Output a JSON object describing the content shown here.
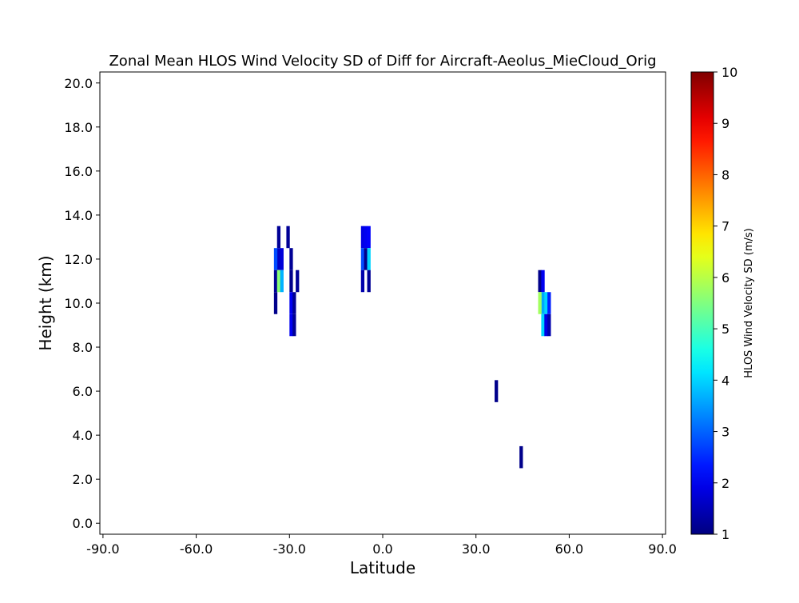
{
  "chart_data": {
    "type": "heatmap",
    "title": "Zonal Mean HLOS Wind Velocity SD of Diff for Aircraft-Aeolus_MieCloud_Orig",
    "xlabel": "Latitude",
    "ylabel": "Height (km)",
    "xlim": [
      -91,
      91
    ],
    "ylim": [
      -0.5,
      20.5
    ],
    "xticks": [
      -90,
      -60,
      -30,
      0,
      30,
      60,
      90
    ],
    "xtick_labels": [
      "-90.0",
      "-60.0",
      "-30.0",
      "0.0",
      "30.0",
      "60.0",
      "90.0"
    ],
    "yticks": [
      0,
      2,
      4,
      6,
      8,
      10,
      12,
      14,
      16,
      18,
      20
    ],
    "ytick_labels": [
      "0.0",
      "2.0",
      "4.0",
      "6.0",
      "8.0",
      "10.0",
      "12.0",
      "14.0",
      "16.0",
      "18.0",
      "20.0"
    ],
    "grid": false,
    "colorbar": {
      "label": "HLOS Wind Velocity SD (m/s)",
      "colormap": "jet",
      "range": [
        1,
        10
      ],
      "ticks": [
        1,
        2,
        3,
        4,
        5,
        6,
        7,
        8,
        9,
        10
      ],
      "tick_labels": [
        "1",
        "2",
        "3",
        "4",
        "5",
        "6",
        "7",
        "8",
        "9",
        "10"
      ]
    },
    "cell_width_deg": 1,
    "cell_height_km": 1,
    "cells": [
      {
        "lat": -33.5,
        "h": 13,
        "v": 1.2
      },
      {
        "lat": -33.5,
        "h": 12,
        "v": 1.6
      },
      {
        "lat": -34.5,
        "h": 12,
        "v": 2.8
      },
      {
        "lat": -34.5,
        "h": 11,
        "v": 1.2
      },
      {
        "lat": -34.5,
        "h": 10,
        "v": 1.1
      },
      {
        "lat": -33.5,
        "h": 11,
        "v": 5.6
      },
      {
        "lat": -32.5,
        "h": 12,
        "v": 1.8
      },
      {
        "lat": -32.5,
        "h": 11,
        "v": 3.7
      },
      {
        "lat": -30.5,
        "h": 13,
        "v": 1.2
      },
      {
        "lat": -29.5,
        "h": 12,
        "v": 1.2
      },
      {
        "lat": -29.5,
        "h": 11,
        "v": 1.1
      },
      {
        "lat": -29.5,
        "h": 10,
        "v": 2.0
      },
      {
        "lat": -29.5,
        "h": 9,
        "v": 2.0
      },
      {
        "lat": -28.5,
        "h": 10,
        "v": 1.2
      },
      {
        "lat": -28.5,
        "h": 9,
        "v": 1.2
      },
      {
        "lat": -27.5,
        "h": 11,
        "v": 1.2
      },
      {
        "lat": -6.5,
        "h": 13,
        "v": 1.9
      },
      {
        "lat": -5.5,
        "h": 13,
        "v": 2.0
      },
      {
        "lat": -4.5,
        "h": 13,
        "v": 2.1
      },
      {
        "lat": -6.5,
        "h": 12,
        "v": 2.8
      },
      {
        "lat": -5.5,
        "h": 12,
        "v": 1.1
      },
      {
        "lat": -4.5,
        "h": 12,
        "v": 4.0
      },
      {
        "lat": -6.5,
        "h": 11,
        "v": 1.4
      },
      {
        "lat": -4.5,
        "h": 11,
        "v": 1.2
      },
      {
        "lat": 36.5,
        "h": 6,
        "v": 1.1
      },
      {
        "lat": 44.5,
        "h": 3,
        "v": 1.1
      },
      {
        "lat": 50.5,
        "h": 11,
        "v": 1.1
      },
      {
        "lat": 51.5,
        "h": 11,
        "v": 2.0
      },
      {
        "lat": 51.5,
        "h": 10,
        "v": 3.6
      },
      {
        "lat": 50.5,
        "h": 10,
        "v": 5.8
      },
      {
        "lat": 52.5,
        "h": 10,
        "v": 4.0
      },
      {
        "lat": 53.5,
        "h": 10,
        "v": 2.4
      },
      {
        "lat": 51.5,
        "h": 9,
        "v": 4.0
      },
      {
        "lat": 52.5,
        "h": 9,
        "v": 1.9
      },
      {
        "lat": 53.5,
        "h": 9,
        "v": 1.4
      }
    ]
  }
}
